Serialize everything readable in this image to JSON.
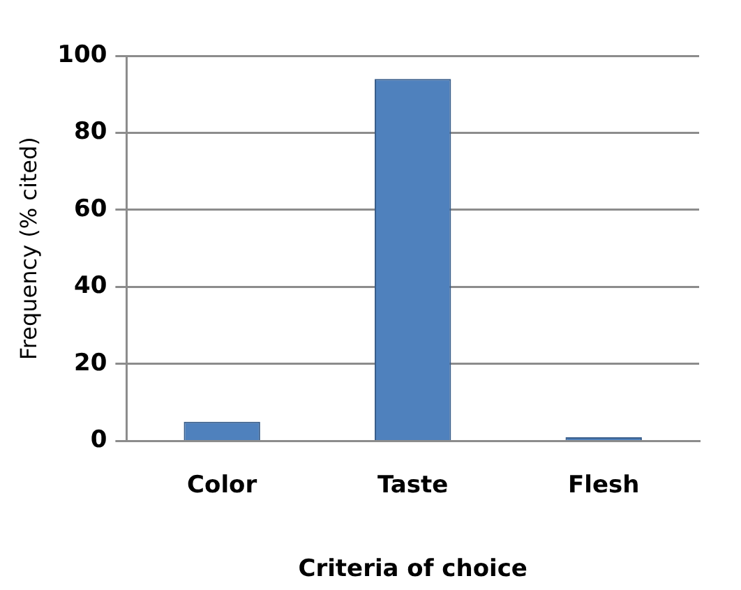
{
  "chart_data": {
    "type": "bar",
    "xlabel": "Criteria of choice",
    "ylabel": "Frequency (% cited)",
    "categories": [
      "Color",
      "Taste",
      "Flesh"
    ],
    "values": [
      5,
      94,
      1
    ],
    "color": "#4f81bd",
    "ylim": [
      0,
      100
    ],
    "yticks": [
      0,
      20,
      40,
      60,
      80,
      100
    ],
    "grid": "y",
    "legend": false
  }
}
